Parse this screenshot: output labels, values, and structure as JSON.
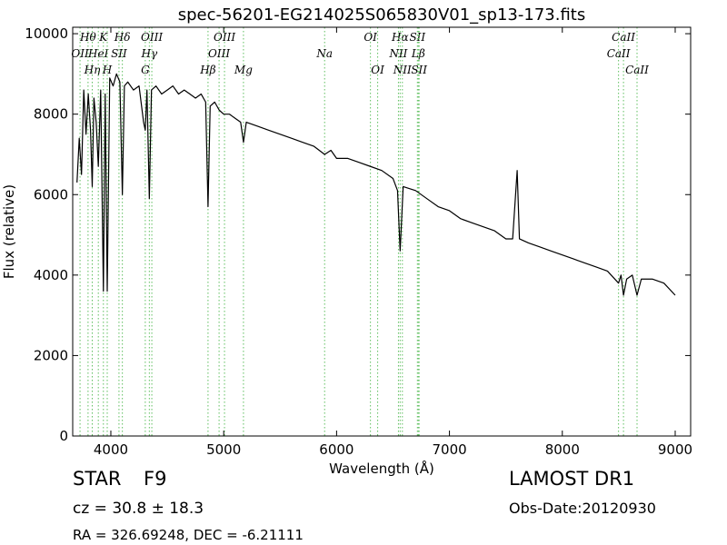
{
  "chart_data": {
    "type": "line",
    "title": "spec-56201-EG214025S065830V01_sp13-173.fits",
    "x_label": "Wavelength (Å)",
    "y_label": "Flux (relative)",
    "xlim": [
      3662,
      9137
    ],
    "ylim": [
      0,
      10160
    ],
    "xticks": [
      4000,
      5000,
      6000,
      7000,
      8000,
      9000
    ],
    "yticks": [
      0,
      2000,
      4000,
      6000,
      8000,
      10000
    ],
    "x": [
      3700,
      3720,
      3740,
      3760,
      3780,
      3800,
      3820,
      3835,
      3850,
      3870,
      3889,
      3910,
      3934,
      3950,
      3968,
      3990,
      4020,
      4050,
      4080,
      4102,
      4120,
      4150,
      4200,
      4250,
      4290,
      4305,
      4320,
      4341,
      4360,
      4400,
      4450,
      4500,
      4550,
      4600,
      4650,
      4700,
      4750,
      4800,
      4840,
      4861,
      4880,
      4920,
      4960,
      5000,
      5050,
      5100,
      5150,
      5175,
      5200,
      5300,
      5400,
      5500,
      5600,
      5700,
      5800,
      5894,
      5950,
      6000,
      6100,
      6200,
      6300,
      6400,
      6500,
      6540,
      6563,
      6590,
      6700,
      6800,
      6900,
      7000,
      7100,
      7200,
      7300,
      7400,
      7500,
      7560,
      7600,
      7620,
      7700,
      7800,
      7900,
      8000,
      8100,
      8200,
      8300,
      8400,
      8498,
      8520,
      8542,
      8570,
      8620,
      8662,
      8700,
      8800,
      8900,
      9000
    ],
    "series": [
      {
        "color": "#000000",
        "values": [
          6300,
          7400,
          6500,
          8600,
          7500,
          8500,
          7600,
          6200,
          8400,
          7800,
          6700,
          8600,
          3600,
          8500,
          3600,
          8900,
          8700,
          9000,
          8800,
          6000,
          8700,
          8800,
          8600,
          8700,
          7800,
          7600,
          8600,
          5900,
          8600,
          8700,
          8500,
          8600,
          8700,
          8500,
          8600,
          8500,
          8400,
          8500,
          8300,
          5700,
          8200,
          8300,
          8100,
          8000,
          8000,
          7900,
          7800,
          7300,
          7800,
          7700,
          7600,
          7500,
          7400,
          7300,
          7200,
          7000,
          7100,
          6900,
          6900,
          6800,
          6700,
          6600,
          6400,
          6100,
          4600,
          6200,
          6100,
          5900,
          5700,
          5600,
          5400,
          5300,
          5200,
          5100,
          4900,
          4900,
          6600,
          4900,
          4800,
          4700,
          4600,
          4500,
          4400,
          4300,
          4200,
          4100,
          3800,
          4000,
          3500,
          3900,
          4000,
          3500,
          3900,
          3900,
          3800,
          3500
        ]
      }
    ],
    "line_color": "#5fbf5f",
    "lines": [
      {
        "label": "Hθ",
        "wavelength": 3798
      },
      {
        "label": "OII",
        "wavelength": 3727
      },
      {
        "label": "Hη",
        "wavelength": 3835
      },
      {
        "label": "K",
        "wavelength": 3934
      },
      {
        "label": "HeI",
        "wavelength": 3889
      },
      {
        "label": "H",
        "wavelength": 3968
      },
      {
        "label": "Hδ",
        "wavelength": 4102
      },
      {
        "label": "SII",
        "wavelength": 4072
      },
      {
        "label": "G",
        "wavelength": 4305
      },
      {
        "label": "OIII",
        "wavelength": 4363
      },
      {
        "label": "Hγ",
        "wavelength": 4341
      },
      {
        "label": "Hβ",
        "wavelength": 4861
      },
      {
        "label": "OIII",
        "wavelength": 5007
      },
      {
        "label": "OIII",
        "wavelength": 4959
      },
      {
        "label": "Mg",
        "wavelength": 5175
      },
      {
        "label": "OI",
        "wavelength": 6300
      },
      {
        "label": "Na",
        "wavelength": 5894
      },
      {
        "label": "OI",
        "wavelength": 6364
      },
      {
        "label": "Hα",
        "wavelength": 6563
      },
      {
        "label": "NII",
        "wavelength": 6548
      },
      {
        "label": "NII",
        "wavelength": 6583
      },
      {
        "label": "SII",
        "wavelength": 6716
      },
      {
        "label": "Lβ",
        "wavelength": 6724
      },
      {
        "label": "SII",
        "wavelength": 6731
      },
      {
        "label": "CaII",
        "wavelength": 8542
      },
      {
        "label": "CaII",
        "wavelength": 8498
      },
      {
        "label": "CaII",
        "wavelength": 8662
      }
    ],
    "object_class": "STAR",
    "subclass": "F9",
    "redshift": "cz = 30.8 ± 18.3",
    "coordinates": "RA = 326.69248, DEC = -6.21111",
    "survey": "LAMOST DR1",
    "obs_date": "Obs-Date:20120930"
  }
}
